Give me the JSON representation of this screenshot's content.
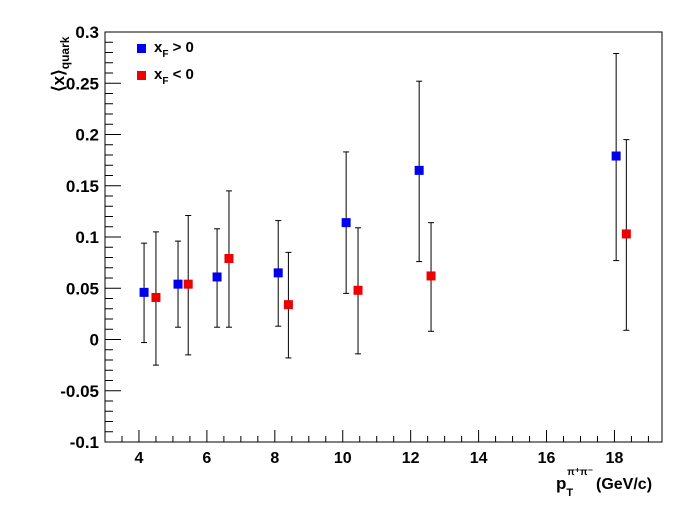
{
  "chart_data": {
    "type": "scatter",
    "title": "",
    "xlabel": {
      "main": "p",
      "sub": "T",
      "sup": "π⁺π⁻",
      "unit": "(GeV/c)"
    },
    "ylabel": {
      "main": "⟨x⟩",
      "sub": "quark"
    },
    "xlim": [
      3,
      19.4
    ],
    "ylim": [
      -0.1,
      0.3
    ],
    "x_ticks": [
      4,
      6,
      8,
      10,
      12,
      14,
      16,
      18
    ],
    "y_ticks": [
      -0.1,
      -0.05,
      0,
      0.05,
      0.1,
      0.15,
      0.2,
      0.25,
      0.3
    ],
    "y_tick_labels": [
      "-0.1",
      "-0.05",
      "0",
      "0.05",
      "0.1",
      "0.15",
      "0.2",
      "0.25",
      "0.3"
    ],
    "legend": {
      "position": "top-left",
      "entries": [
        {
          "main": "x",
          "sub": "F",
          "rest": " > 0",
          "color": "#0000ee"
        },
        {
          "main": "x",
          "sub": "F",
          "rest": " < 0",
          "color": "#ee0000"
        }
      ]
    },
    "series": [
      {
        "color": "#0000ee",
        "x": [
          4.15,
          5.15,
          6.3,
          8.1,
          10.1,
          12.25,
          18.05
        ],
        "y": [
          0.046,
          0.054,
          0.061,
          0.065,
          0.114,
          0.165,
          0.179
        ],
        "y_low": [
          -0.003,
          0.012,
          0.012,
          0.013,
          0.045,
          0.076,
          0.077
        ],
        "y_high": [
          0.094,
          0.096,
          0.108,
          0.116,
          0.183,
          0.252,
          0.279
        ]
      },
      {
        "color": "#ee0000",
        "x": [
          4.5,
          5.45,
          6.65,
          8.4,
          10.45,
          12.6,
          18.35
        ],
        "y": [
          0.041,
          0.054,
          0.079,
          0.034,
          0.048,
          0.062,
          0.103
        ],
        "y_low": [
          -0.025,
          -0.015,
          0.012,
          -0.018,
          -0.014,
          0.008,
          0.009
        ],
        "y_high": [
          0.105,
          0.121,
          0.145,
          0.085,
          0.109,
          0.114,
          0.195
        ]
      }
    ]
  }
}
